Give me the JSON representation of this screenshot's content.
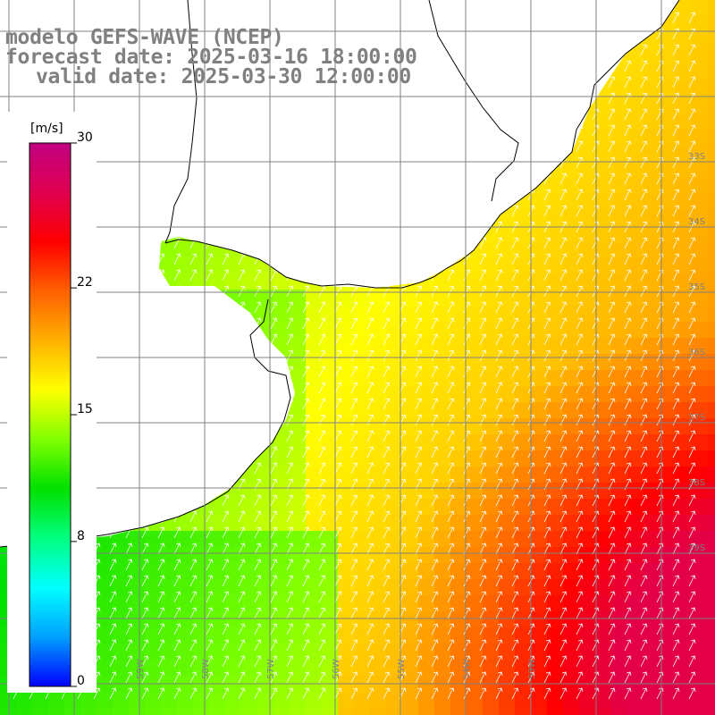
{
  "header": {
    "model": "modelo GEFS-WAVE (NCEP)",
    "forecast": "forecast date: 2025-03-16 18:00:00",
    "valid": "valid date: 2025-03-30 12:00:00"
  },
  "colorbar": {
    "unit": "[m/s]",
    "ticks": [
      {
        "label": "30",
        "value": 30
      },
      {
        "label": "22",
        "value": 22
      },
      {
        "label": "15",
        "value": 15
      },
      {
        "label": "8",
        "value": 8
      },
      {
        "label": "0",
        "value": 0
      }
    ],
    "stops": [
      "#0000ff",
      "#00a0ff",
      "#00ffff",
      "#00ff80",
      "#00e000",
      "#80ff00",
      "#ffff00",
      "#ffb000",
      "#ff6000",
      "#ff0000",
      "#e00050",
      "#c00080"
    ]
  },
  "lat_labels": [
    "33S",
    "34S",
    "35S",
    "36S",
    "37S",
    "38S",
    "39S"
  ],
  "lon_labels": [
    "59W",
    "58W",
    "57W",
    "56W",
    "55W",
    "54W",
    "53W"
  ],
  "colors": {
    "land": "#ffffff",
    "coast": "#000000",
    "grid": "#808080",
    "arrow": "#ffffff",
    "title": "#808080"
  }
}
